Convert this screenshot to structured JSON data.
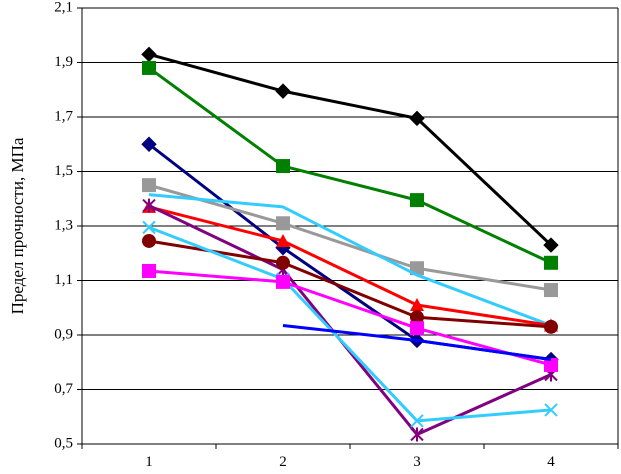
{
  "chart_data": {
    "type": "line",
    "title": "",
    "xlabel": "",
    "ylabel": "Предел прочности, МПа",
    "categories": [
      1,
      2,
      3,
      4
    ],
    "y_ticks": [
      "0,5",
      "0,7",
      "0,9",
      "1,1",
      "1,3",
      "1,5",
      "1,7",
      "1,9",
      "2,1"
    ],
    "ylim": [
      0.5,
      2.1
    ],
    "grid": "horizontal",
    "legend": "none",
    "series": [
      {
        "color": "#000000",
        "marker": "diamond",
        "values": [
          1.93,
          1.795,
          1.695,
          1.23
        ]
      },
      {
        "color": "#008000",
        "marker": "square",
        "values": [
          1.88,
          1.52,
          1.395,
          1.165
        ]
      },
      {
        "color": "#000080",
        "marker": "diamond",
        "values": [
          1.6,
          1.22,
          0.88,
          0.81
        ]
      },
      {
        "color": "#999999",
        "marker": "square",
        "values": [
          1.45,
          1.31,
          1.145,
          1.065
        ]
      },
      {
        "color": "#33CCFF",
        "marker": "none",
        "values": [
          1.415,
          1.37,
          1.12,
          0.935
        ]
      },
      {
        "color": "#FF0000",
        "marker": "triangle",
        "values": [
          1.37,
          1.245,
          1.01,
          0.935
        ]
      },
      {
        "color": "#800080",
        "marker": "star",
        "values": [
          1.375,
          1.14,
          0.535,
          0.755
        ]
      },
      {
        "color": "#800000",
        "marker": "circle",
        "values": [
          1.245,
          1.165,
          0.965,
          0.93
        ]
      },
      {
        "color": "#33CCFF",
        "marker": "x",
        "values": [
          1.295,
          1.105,
          0.585,
          0.625
        ]
      },
      {
        "color": "#FF00FF",
        "marker": "square",
        "values": [
          1.135,
          1.095,
          0.925,
          0.79
        ]
      },
      {
        "color": "#0000FF",
        "marker": "none",
        "values": [
          null,
          0.935,
          0.88,
          0.81
        ]
      }
    ]
  }
}
